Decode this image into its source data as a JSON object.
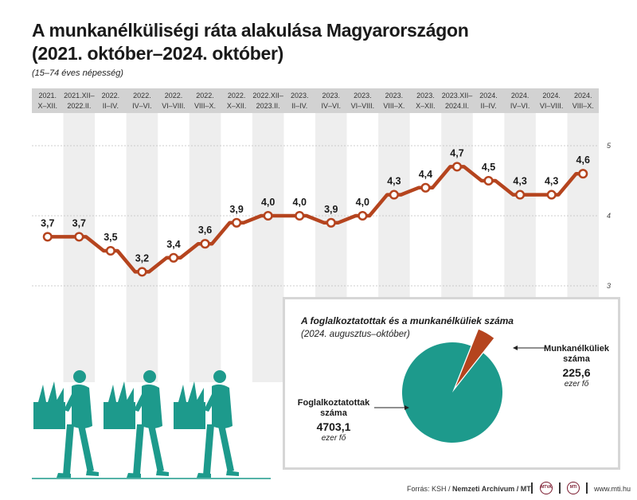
{
  "title_line1": "A munkanélküliségi ráta alakulása Magyarországon",
  "title_line2": "(2021. október–2024. október)",
  "subtitle": "(15–74 éves népesség)",
  "chart_data": [
    {
      "type": "line",
      "title": "A munkanélküliségi ráta alakulása Magyarországon (2021. október–2024. október)",
      "subtitle": "(15–74 éves népesség)",
      "categories": [
        [
          "2021.",
          "X–XII."
        ],
        [
          "2021.XII–",
          "2022.II."
        ],
        [
          "2022.",
          "II–IV."
        ],
        [
          "2022.",
          "IV–VI."
        ],
        [
          "2022.",
          "VI–VIII."
        ],
        [
          "2022.",
          "VIII–X."
        ],
        [
          "2022.",
          "X–XII."
        ],
        [
          "2022.XII–",
          "2023.II."
        ],
        [
          "2023.",
          "II–IV."
        ],
        [
          "2023.",
          "IV–VI."
        ],
        [
          "2023.",
          "VI–VIII."
        ],
        [
          "2023.",
          "VIII–X."
        ],
        [
          "2023.",
          "X–XII."
        ],
        [
          "2023.XII–",
          "2024.II."
        ],
        [
          "2024.",
          "II–IV."
        ],
        [
          "2024.",
          "IV–VI."
        ],
        [
          "2024.",
          "VI–VIII."
        ],
        [
          "2024.",
          "VIII–X."
        ]
      ],
      "values": [
        3.7,
        3.7,
        3.5,
        3.2,
        3.4,
        3.6,
        3.9,
        4.0,
        4.0,
        3.9,
        4.0,
        4.3,
        4.4,
        4.7,
        4.5,
        4.3,
        4.3,
        4.6
      ],
      "value_labels": [
        "3,7",
        "3,7",
        "3,5",
        "3,2",
        "3,4",
        "3,6",
        "3,9",
        "4,0",
        "4,0",
        "3,9",
        "4,0",
        "4,3",
        "4,4",
        "4,7",
        "4,5",
        "4,3",
        "4,3",
        "4,6"
      ],
      "ylim": [
        3,
        5
      ],
      "y_ticks": [
        3,
        4,
        5
      ],
      "y_tick_labels": [
        "3",
        "4",
        "5"
      ],
      "grid": true,
      "line_color": "#b5441e",
      "marker_fill": "#ffffff"
    },
    {
      "type": "pie",
      "title": "A foglalkoztatottak és a munkanélküliek száma",
      "subtitle": "(2024. augusztus–október)",
      "slices": [
        {
          "name_line1": "Foglalkoztatottak",
          "name_line2": "száma",
          "value": 4703.1,
          "value_label": "4703,1",
          "unit": "ezer fő",
          "color": "#1d9a8c"
        },
        {
          "name_line1": "Munkanélküliek",
          "name_line2": "száma",
          "value": 225.6,
          "value_label": "225,6",
          "unit": "ezer fő",
          "color": "#b5441e"
        }
      ]
    }
  ],
  "footer": {
    "source_prefix": "Forrás: KSH / ",
    "source_bold": "Nemzeti Archívum / MTI",
    "logo1": "MTVA",
    "logo2": "MTI",
    "website": "www.mti.hu"
  },
  "colors": {
    "line": "#b5441e",
    "pie_employed": "#1d9a8c",
    "pie_unemployed": "#b5441e",
    "figures": "#1d9a8c",
    "header_bg": "#d2d2d2",
    "band_bg": "#eeeeee"
  }
}
